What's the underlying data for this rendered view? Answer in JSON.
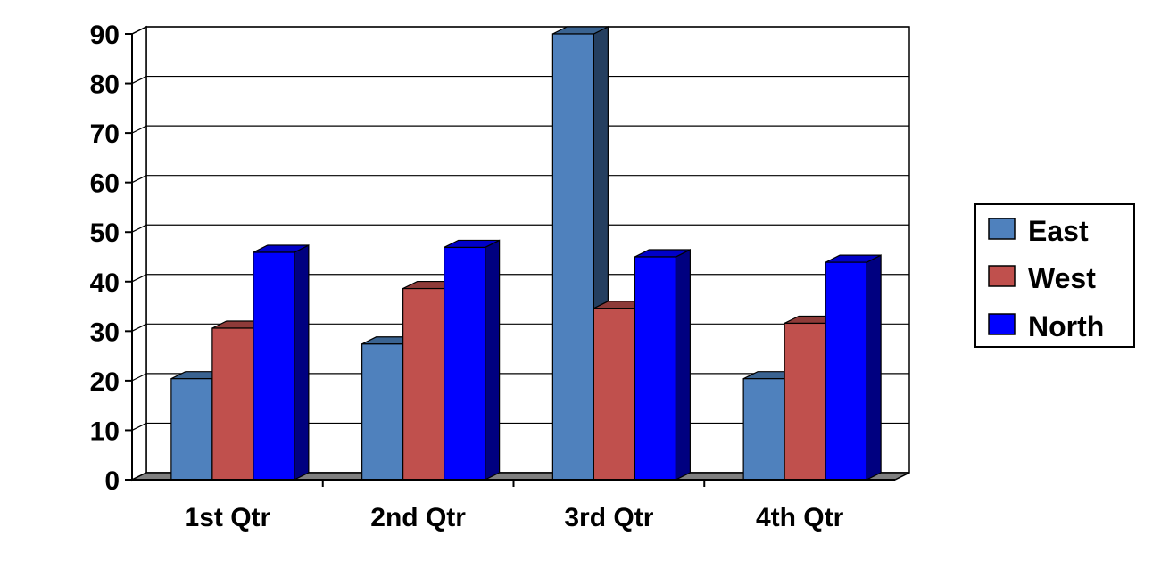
{
  "chart_data": {
    "type": "bar",
    "title": "",
    "xlabel": "",
    "ylabel": "",
    "ylim": [
      0,
      90
    ],
    "yticks": [
      "0",
      "10",
      "20",
      "30",
      "40",
      "50",
      "60",
      "70",
      "80",
      "90"
    ],
    "categories": [
      "1st Qtr",
      "2nd Qtr",
      "3rd Qtr",
      "4th Qtr"
    ],
    "series": [
      {
        "name": "East",
        "values": [
          20.4,
          27.4,
          90,
          20.4
        ],
        "color": "#4F81BD",
        "side": "#253F60",
        "top": "#3A6391"
      },
      {
        "name": "West",
        "values": [
          30.6,
          38.6,
          34.6,
          31.6
        ],
        "color": "#C0504D",
        "side": "#6E2B29",
        "top": "#8E3B39"
      },
      {
        "name": "North",
        "values": [
          45.9,
          46.9,
          45,
          43.9
        ],
        "color": "#0000FF",
        "side": "#000080",
        "top": "#0000C8"
      }
    ],
    "grid": true,
    "legend": "right",
    "colors": {
      "floor": "#808080",
      "grid": "#000000"
    }
  }
}
